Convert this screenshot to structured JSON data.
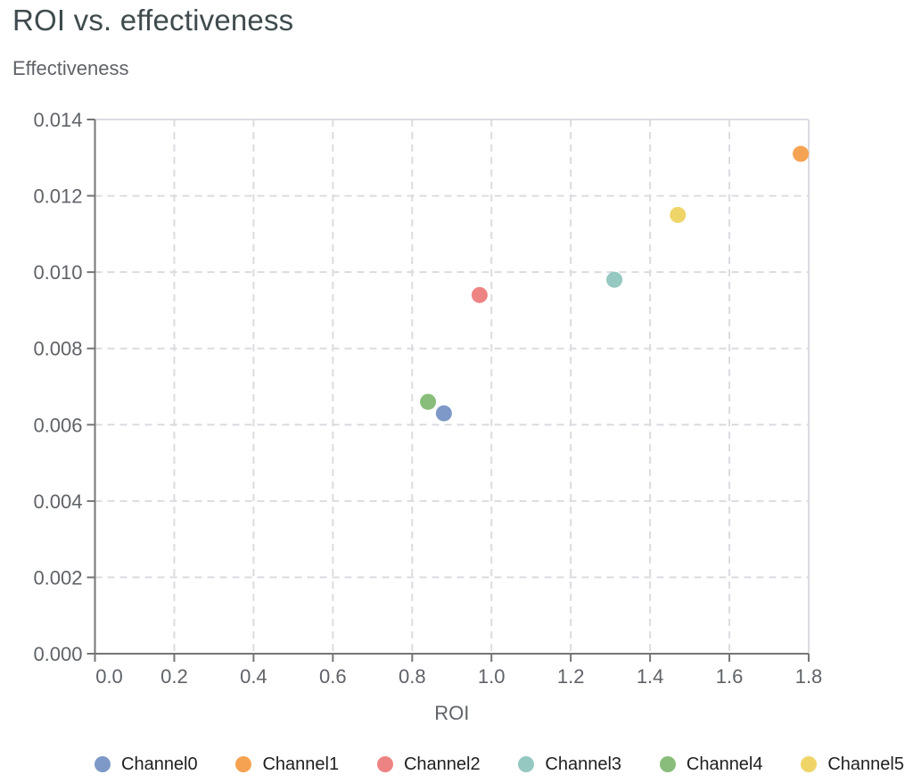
{
  "chart_data": {
    "type": "scatter",
    "title": "ROI vs. effectiveness",
    "xlabel": "ROI",
    "ylabel": "Effectiveness",
    "xlim": [
      0.0,
      1.8
    ],
    "ylim": [
      0.0,
      0.014
    ],
    "grid": true,
    "grid_style": "dashed",
    "legend_position": "bottom",
    "x_ticks": [
      0.0,
      0.2,
      0.4,
      0.6,
      0.8,
      1.0,
      1.2,
      1.4,
      1.6,
      1.8
    ],
    "x_tick_labels": [
      "0.0",
      "0.2",
      "0.4",
      "0.6",
      "0.8",
      "1.0",
      "1.2",
      "1.4",
      "1.6",
      "1.8"
    ],
    "y_ticks": [
      0.0,
      0.002,
      0.004,
      0.006,
      0.008,
      0.01,
      0.012,
      0.014
    ],
    "y_tick_labels": [
      "0.000",
      "0.002",
      "0.004",
      "0.006",
      "0.008",
      "0.010",
      "0.012",
      "0.014"
    ],
    "series": [
      {
        "name": "Channel0",
        "color": "#7e99c7",
        "points": [
          {
            "x": 0.88,
            "y": 0.0063
          }
        ]
      },
      {
        "name": "Channel1",
        "color": "#f5a352",
        "points": [
          {
            "x": 1.78,
            "y": 0.0131
          }
        ]
      },
      {
        "name": "Channel2",
        "color": "#ee8383",
        "points": [
          {
            "x": 0.97,
            "y": 0.0094
          }
        ]
      },
      {
        "name": "Channel3",
        "color": "#95c8c1",
        "points": [
          {
            "x": 1.31,
            "y": 0.0098
          }
        ]
      },
      {
        "name": "Channel4",
        "color": "#89bd7b",
        "points": [
          {
            "x": 0.84,
            "y": 0.0066
          }
        ]
      },
      {
        "name": "Channel5",
        "color": "#efd568",
        "points": [
          {
            "x": 1.47,
            "y": 0.0115
          }
        ]
      }
    ],
    "colors": {
      "axis_line": "#757575",
      "grid_line": "#dadce0",
      "plot_border": "#dadce0",
      "tick_label": "#5f6368",
      "axis_title": "#5f6368",
      "chart_title": "#3f4b4e",
      "legend_text": "#1f1f1f",
      "background": "#ffffff"
    }
  }
}
